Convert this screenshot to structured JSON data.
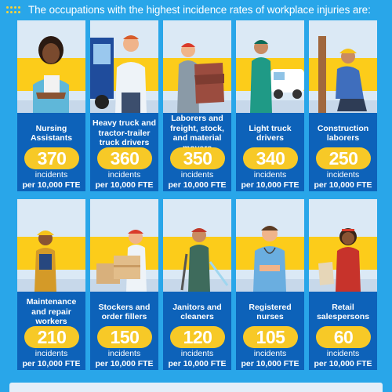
{
  "header": {
    "title": "The occupations with the highest incidence rates of workplace injuries are:"
  },
  "cards": [
    {
      "occupation": "Nursing Assistants",
      "rate": "370",
      "unit1": "incidents",
      "unit2": "per 10,000 FTE",
      "icon": "nurse-illustration"
    },
    {
      "occupation": "Heavy truck and tractor-trailer truck drivers",
      "rate": "360",
      "unit1": "incidents",
      "unit2": "per 10,000 FTE",
      "icon": "truck-driver-illustration"
    },
    {
      "occupation": "Laborers and freight, stock, and material movers",
      "rate": "350",
      "unit1": "incidents",
      "unit2": "per 10,000 FTE",
      "icon": "mover-illustration"
    },
    {
      "occupation": "Light truck drivers",
      "rate": "340",
      "unit1": "incidents",
      "unit2": "per 10,000 FTE",
      "icon": "van-driver-illustration"
    },
    {
      "occupation": "Construction laborers",
      "rate": "250",
      "unit1": "incidents",
      "unit2": "per 10,000 FTE",
      "icon": "construction-worker-illustration"
    },
    {
      "occupation": "Maintenance and repair workers",
      "rate": "210",
      "unit1": "incidents",
      "unit2": "per 10,000 FTE",
      "icon": "maintenance-worker-illustration"
    },
    {
      "occupation": "Stockers and order fillers",
      "rate": "150",
      "unit1": "incidents",
      "unit2": "per 10,000 FTE",
      "icon": "stocker-illustration"
    },
    {
      "occupation": "Janitors and cleaners",
      "rate": "120",
      "unit1": "incidents",
      "unit2": "per 10,000 FTE",
      "icon": "janitor-illustration"
    },
    {
      "occupation": "Registered nurses",
      "rate": "105",
      "unit1": "incidents",
      "unit2": "per 10,000 FTE",
      "icon": "registered-nurse-illustration"
    },
    {
      "occupation": "Retail salespersons",
      "rate": "60",
      "unit1": "incidents",
      "unit2": "per 10,000 FTE",
      "icon": "salesperson-illustration"
    }
  ],
  "colors": {
    "background": "#29a6e9",
    "card": "#0d62b9",
    "accent": "#f7c927",
    "illustration_bg": "#dbe9f5"
  }
}
